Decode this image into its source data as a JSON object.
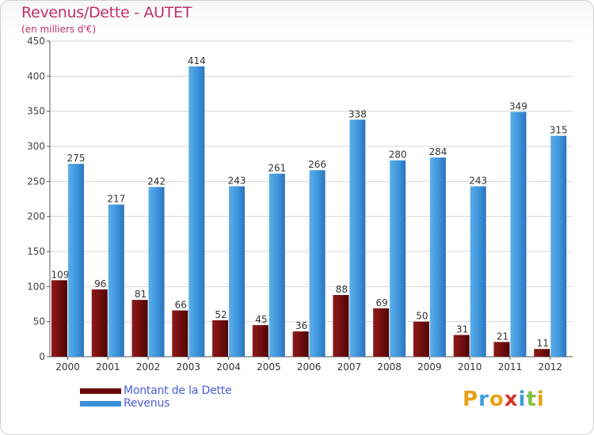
{
  "chart_data": {
    "type": "bar",
    "title": "Revenus/Dette - AUTET",
    "subtitle": "(en milliers d'€)",
    "categories": [
      "2000",
      "2001",
      "2002",
      "2003",
      "2004",
      "2005",
      "2006",
      "2007",
      "2008",
      "2009",
      "2010",
      "2011",
      "2012"
    ],
    "series": [
      {
        "name": "Montant de la Dette",
        "values": [
          109,
          96,
          81,
          66,
          52,
          45,
          36,
          88,
          69,
          50,
          31,
          21,
          11
        ]
      },
      {
        "name": "Revenus",
        "values": [
          275,
          217,
          242,
          414,
          243,
          261,
          266,
          338,
          280,
          284,
          243,
          349,
          315
        ]
      }
    ],
    "ylim": [
      0,
      450
    ],
    "yticks": [
      0,
      50,
      100,
      150,
      200,
      250,
      300,
      350,
      400,
      450
    ],
    "grid": true,
    "legend_position": "bottom-left",
    "colors": {
      "debt": "#6b0a0a",
      "revenue": "#3b8fd6",
      "title": "#c0306a",
      "legend_text": "#4a5bd8"
    }
  },
  "logo": {
    "letters": [
      "P",
      "r",
      "o",
      "x",
      "i",
      "t",
      "i"
    ]
  }
}
